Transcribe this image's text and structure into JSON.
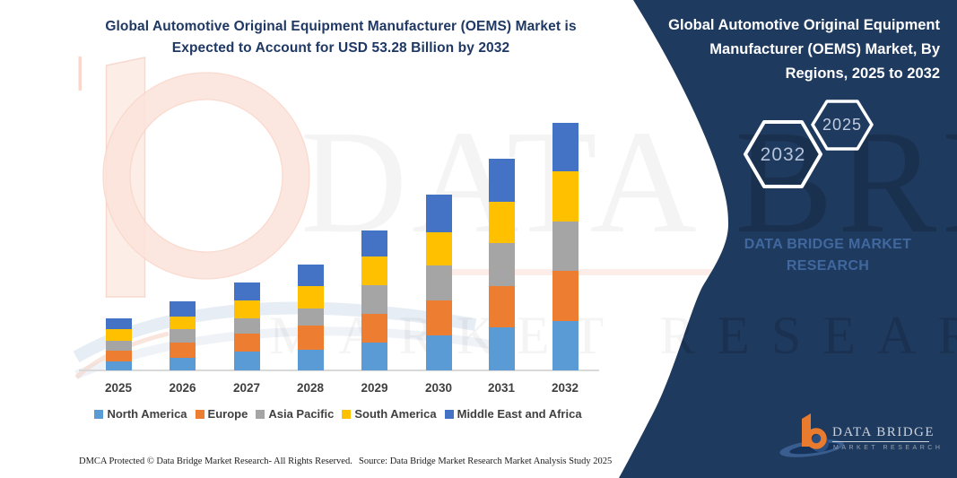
{
  "left_panel": {
    "title_line1": "Global Automotive Original Equipment Manufacturer (OEMS) Market is",
    "title_line2": "Expected to Account for USD 53.28 Billion by 2032",
    "footer_left": "DMCA Protected © Data Bridge Market Research-  All Rights Reserved.",
    "footer_right": "Source: Data Bridge Market Research  Market Analysis Study 2025"
  },
  "chart_data": {
    "type": "bar",
    "stacked": true,
    "title": "Global Automotive Original Equipment Manufacturer (OEMS) Market is Expected to Account for USD 53.28 Billion by 2032",
    "unit": "USD Billion",
    "categories": [
      "2025",
      "2026",
      "2027",
      "2028",
      "2029",
      "2030",
      "2031",
      "2032"
    ],
    "series": [
      {
        "name": "North America",
        "color": "#5B9BD5",
        "values": [
          1.9,
          2.8,
          4.0,
          4.5,
          5.9,
          7.5,
          9.2,
          10.59
        ]
      },
      {
        "name": "Europe",
        "color": "#ED7D31",
        "values": [
          2.4,
          3.2,
          3.9,
          5.1,
          6.2,
          7.5,
          9.0,
          10.79
        ]
      },
      {
        "name": "Asia Pacific",
        "color": "#A5A5A5",
        "values": [
          2.1,
          2.9,
          3.3,
          3.7,
          6.2,
          7.5,
          9.3,
          10.59
        ]
      },
      {
        "name": "South America",
        "color": "#FFC000",
        "values": [
          2.5,
          2.7,
          3.9,
          4.9,
          6.2,
          7.3,
          8.8,
          10.84
        ]
      },
      {
        "name": "Middle East and Africa",
        "color": "#4472C4",
        "values": [
          2.3,
          3.2,
          3.9,
          4.5,
          5.6,
          8.0,
          9.3,
          10.47
        ]
      }
    ],
    "totals": [
      11.2,
      14.8,
      19.0,
      22.7,
      30.1,
      37.8,
      45.6,
      53.28
    ],
    "ylim": [
      0,
      55
    ],
    "gridlines": false,
    "legend_position": "bottom"
  },
  "right_panel": {
    "title_line1": "Global Automotive Original Equipment",
    "title_line2": "Manufacturer (OEMS) Market, By",
    "title_line3": "Regions, 2025 to 2032",
    "hexagon_large_label": "2032",
    "hexagon_small_label": "2025",
    "brand_line1": "DATA BRIDGE MARKET",
    "brand_line2": "RESEARCH",
    "logo_title": "DATA BRIDGE",
    "logo_subtitle": "MARKET RESEARCH",
    "panel_color": "#1f3a5f"
  },
  "watermark": {
    "line1": "DATA BRIDGE",
    "line2": "MARKET RESEARCH"
  }
}
